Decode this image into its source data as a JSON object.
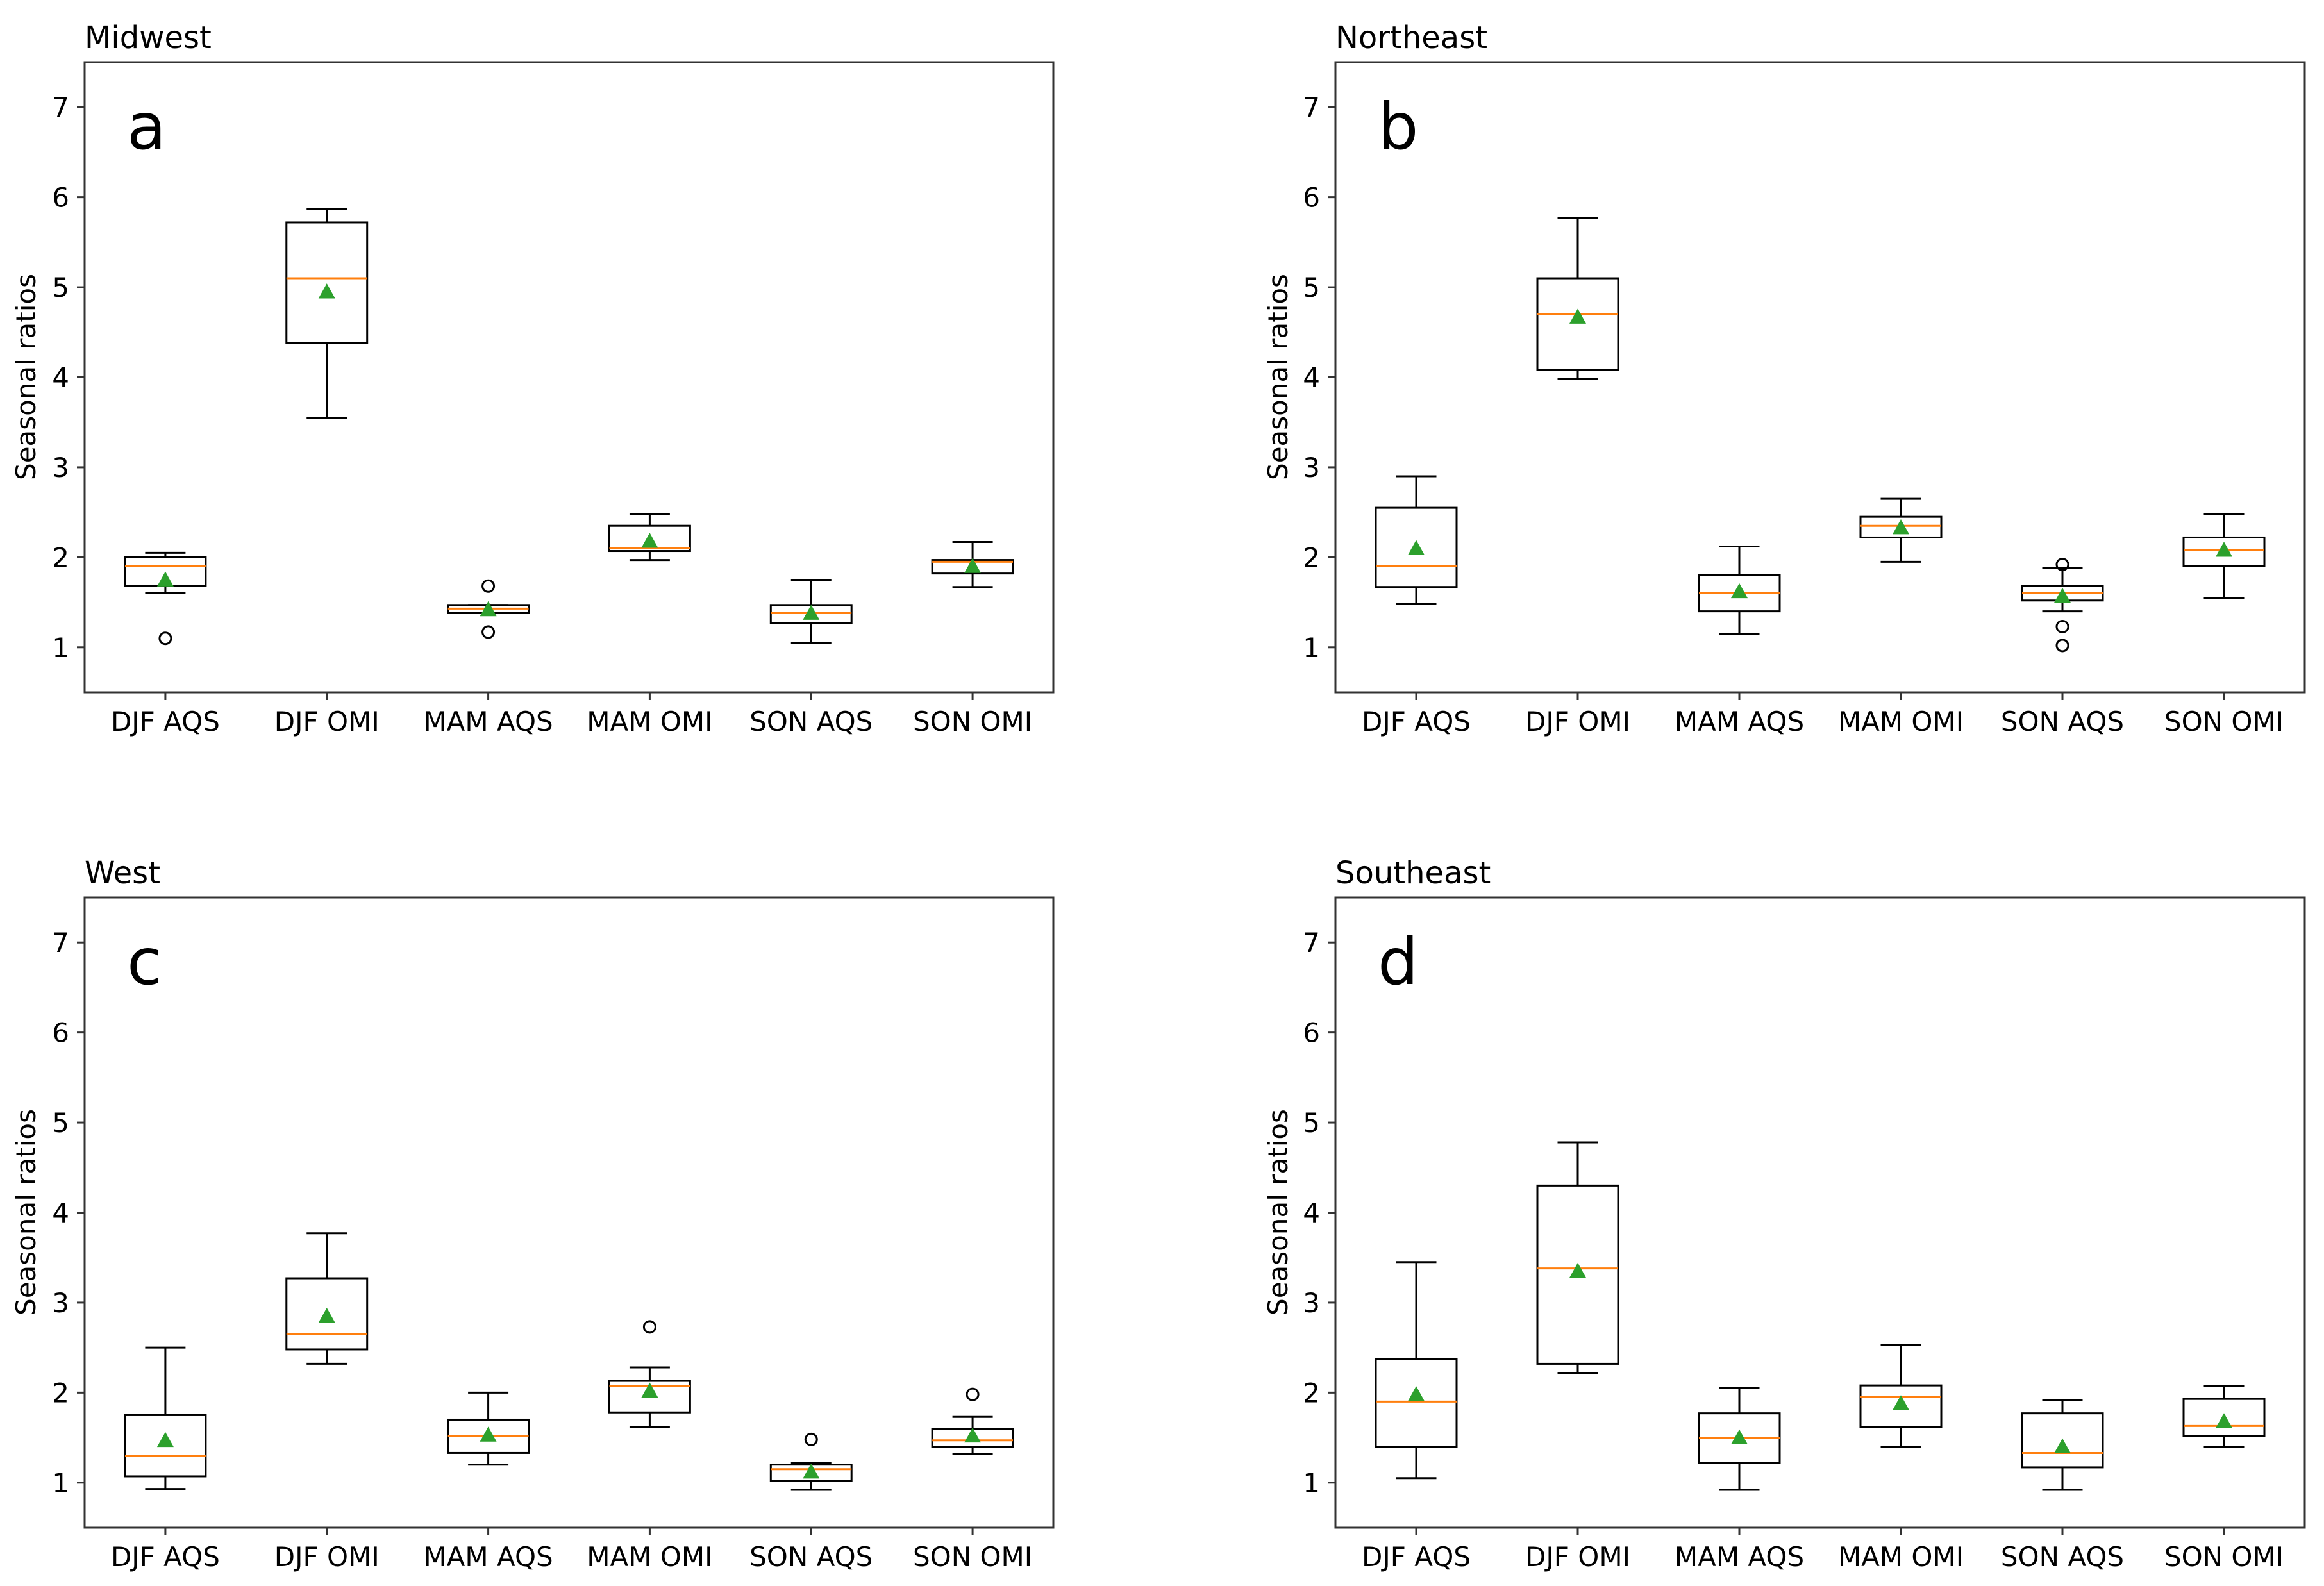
{
  "chart_data": [
    {
      "type": "box",
      "title": "Midwest",
      "panel_label": "a",
      "ylabel": "Seasonal ratios",
      "xlabel": "",
      "ylim": [
        0.5,
        7.5
      ],
      "yticks": [
        1,
        2,
        3,
        4,
        5,
        6,
        7
      ],
      "categories": [
        "DJF AQS",
        "DJF OMI",
        "MAM AQS",
        "MAM OMI",
        "SON AQS",
        "SON OMI"
      ],
      "boxes": [
        {
          "wlo": 1.6,
          "q1": 1.68,
          "median": 1.9,
          "q3": 2.0,
          "whi": 2.05,
          "mean": 1.75,
          "fliers": [
            1.1
          ]
        },
        {
          "wlo": 3.55,
          "q1": 4.38,
          "median": 5.1,
          "q3": 5.72,
          "whi": 5.87,
          "mean": 4.95,
          "fliers": []
        },
        {
          "wlo": 1.38,
          "q1": 1.38,
          "median": 1.43,
          "q3": 1.47,
          "whi": 1.47,
          "mean": 1.42,
          "fliers": [
            1.68,
            1.17
          ]
        },
        {
          "wlo": 1.97,
          "q1": 2.07,
          "median": 2.1,
          "q3": 2.35,
          "whi": 2.48,
          "mean": 2.18,
          "fliers": []
        },
        {
          "wlo": 1.05,
          "q1": 1.27,
          "median": 1.38,
          "q3": 1.47,
          "whi": 1.75,
          "mean": 1.38,
          "fliers": []
        },
        {
          "wlo": 1.67,
          "q1": 1.82,
          "median": 1.95,
          "q3": 1.97,
          "whi": 2.17,
          "mean": 1.9,
          "fliers": []
        }
      ]
    },
    {
      "type": "box",
      "title": "Northeast",
      "panel_label": "b",
      "ylabel": "Seasonal ratios",
      "xlabel": "",
      "ylim": [
        0.5,
        7.5
      ],
      "yticks": [
        1,
        2,
        3,
        4,
        5,
        6,
        7
      ],
      "categories": [
        "DJF AQS",
        "DJF OMI",
        "MAM AQS",
        "MAM OMI",
        "SON AQS",
        "SON OMI"
      ],
      "boxes": [
        {
          "wlo": 1.48,
          "q1": 1.67,
          "median": 1.9,
          "q3": 2.55,
          "whi": 2.9,
          "mean": 2.1,
          "fliers": []
        },
        {
          "wlo": 3.98,
          "q1": 4.08,
          "median": 4.7,
          "q3": 5.1,
          "whi": 5.77,
          "mean": 4.67,
          "fliers": []
        },
        {
          "wlo": 1.15,
          "q1": 1.4,
          "median": 1.6,
          "q3": 1.8,
          "whi": 2.12,
          "mean": 1.62,
          "fliers": []
        },
        {
          "wlo": 1.95,
          "q1": 2.22,
          "median": 2.35,
          "q3": 2.45,
          "whi": 2.65,
          "mean": 2.33,
          "fliers": []
        },
        {
          "wlo": 1.4,
          "q1": 1.52,
          "median": 1.6,
          "q3": 1.68,
          "whi": 1.88,
          "mean": 1.57,
          "fliers": [
            1.92,
            1.23,
            1.02
          ]
        },
        {
          "wlo": 1.55,
          "q1": 1.9,
          "median": 2.08,
          "q3": 2.22,
          "whi": 2.48,
          "mean": 2.08,
          "fliers": []
        }
      ]
    },
    {
      "type": "box",
      "title": "West",
      "panel_label": "c",
      "ylabel": "Seasonal ratios",
      "xlabel": "",
      "ylim": [
        0.5,
        7.5
      ],
      "yticks": [
        1,
        2,
        3,
        4,
        5,
        6,
        7
      ],
      "categories": [
        "DJF AQS",
        "DJF OMI",
        "MAM AQS",
        "MAM OMI",
        "SON AQS",
        "SON OMI"
      ],
      "boxes": [
        {
          "wlo": 0.93,
          "q1": 1.07,
          "median": 1.3,
          "q3": 1.75,
          "whi": 2.5,
          "mean": 1.47,
          "fliers": []
        },
        {
          "wlo": 2.32,
          "q1": 2.48,
          "median": 2.65,
          "q3": 3.27,
          "whi": 3.77,
          "mean": 2.85,
          "fliers": []
        },
        {
          "wlo": 1.2,
          "q1": 1.33,
          "median": 1.52,
          "q3": 1.7,
          "whi": 2.0,
          "mean": 1.53,
          "fliers": []
        },
        {
          "wlo": 1.62,
          "q1": 1.78,
          "median": 2.07,
          "q3": 2.13,
          "whi": 2.28,
          "mean": 2.02,
          "fliers": [
            2.73
          ]
        },
        {
          "wlo": 0.92,
          "q1": 1.02,
          "median": 1.15,
          "q3": 1.2,
          "whi": 1.22,
          "mean": 1.12,
          "fliers": [
            1.48
          ]
        },
        {
          "wlo": 1.32,
          "q1": 1.4,
          "median": 1.47,
          "q3": 1.6,
          "whi": 1.73,
          "mean": 1.52,
          "fliers": [
            1.98
          ]
        }
      ]
    },
    {
      "type": "box",
      "title": "Southeast",
      "panel_label": "d",
      "ylabel": "Seasonal ratios",
      "xlabel": "",
      "ylim": [
        0.5,
        7.5
      ],
      "yticks": [
        1,
        2,
        3,
        4,
        5,
        6,
        7
      ],
      "categories": [
        "DJF AQS",
        "DJF OMI",
        "MAM AQS",
        "MAM OMI",
        "SON AQS",
        "SON OMI"
      ],
      "boxes": [
        {
          "wlo": 1.05,
          "q1": 1.4,
          "median": 1.9,
          "q3": 2.37,
          "whi": 3.45,
          "mean": 1.98,
          "fliers": []
        },
        {
          "wlo": 2.22,
          "q1": 2.32,
          "median": 3.38,
          "q3": 4.3,
          "whi": 4.78,
          "mean": 3.35,
          "fliers": []
        },
        {
          "wlo": 0.92,
          "q1": 1.22,
          "median": 1.5,
          "q3": 1.77,
          "whi": 2.05,
          "mean": 1.5,
          "fliers": []
        },
        {
          "wlo": 1.4,
          "q1": 1.62,
          "median": 1.95,
          "q3": 2.08,
          "whi": 2.53,
          "mean": 1.88,
          "fliers": []
        },
        {
          "wlo": 0.92,
          "q1": 1.17,
          "median": 1.33,
          "q3": 1.77,
          "whi": 1.92,
          "mean": 1.4,
          "fliers": []
        },
        {
          "wlo": 1.4,
          "q1": 1.52,
          "median": 1.63,
          "q3": 1.93,
          "whi": 2.07,
          "mean": 1.68,
          "fliers": []
        }
      ]
    }
  ],
  "colors": {
    "median": "#ff7f0e",
    "mean": "#2ca02c",
    "box": "#000000"
  }
}
